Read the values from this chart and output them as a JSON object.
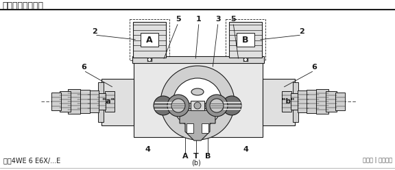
{
  "title": "功能说明，剖视图",
  "model_text": "型号4WE 6 E6X/...E",
  "sub_label": "(b)",
  "watermark": "网易号 | 机电天下",
  "bg_color": "#ffffff",
  "line_color": "#1a1a1a",
  "title_fontsize": 9,
  "label_fontsize": 8,
  "small_fontsize": 7,
  "fig_width": 5.76,
  "fig_height": 2.48,
  "dpi": 100
}
